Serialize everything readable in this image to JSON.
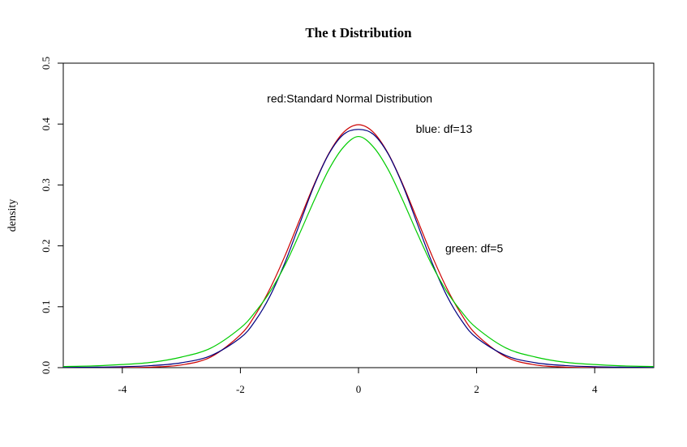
{
  "chart_data": {
    "type": "line",
    "title": "The t Distribution",
    "xlabel": "",
    "ylabel": "density",
    "xlim": [
      -5,
      5
    ],
    "ylim": [
      0,
      0.5
    ],
    "x_ticks": [
      "-4",
      "-2",
      "0",
      "2",
      "4"
    ],
    "y_ticks": [
      "0.0",
      "0.1",
      "0.2",
      "0.3",
      "0.4",
      "0.5"
    ],
    "x": [
      -5,
      -4.5,
      -4,
      -3.5,
      -3,
      -2.5,
      -2,
      -1.75,
      -1.5,
      -1.25,
      -1,
      -0.75,
      -0.5,
      -0.25,
      0,
      0.25,
      0.5,
      0.75,
      1,
      1.25,
      1.5,
      1.75,
      2,
      2.5,
      3,
      3.5,
      4,
      4.5,
      5
    ],
    "series": [
      {
        "name": "",
        "color": "#cc0000",
        "values": [
          0.0,
          0.0,
          0.0001,
          0.0009,
          0.0044,
          0.0175,
          0.054,
          0.0863,
          0.1295,
          0.1826,
          0.242,
          0.3011,
          0.3521,
          0.3867,
          0.3989,
          0.3867,
          0.3521,
          0.3011,
          0.242,
          0.1826,
          0.1295,
          0.0863,
          0.054,
          0.0175,
          0.0044,
          0.0009,
          0.0001,
          0.0,
          0.0
        ]
      },
      {
        "name": "",
        "color": "#000080",
        "values": [
          0.0003,
          0.0007,
          0.0015,
          0.0034,
          0.008,
          0.0197,
          0.049,
          0.0768,
          0.1173,
          0.1714,
          0.2353,
          0.2994,
          0.3513,
          0.3833,
          0.3912,
          0.3833,
          0.3513,
          0.2994,
          0.2353,
          0.1714,
          0.1173,
          0.0768,
          0.049,
          0.0197,
          0.008,
          0.0034,
          0.0015,
          0.0007,
          0.0003
        ]
      },
      {
        "name": "",
        "color": "#00cc00",
        "values": [
          0.0018,
          0.0028,
          0.0051,
          0.0088,
          0.0173,
          0.0322,
          0.0651,
          0.0912,
          0.1245,
          0.1674,
          0.2197,
          0.2747,
          0.3257,
          0.3626,
          0.3796,
          0.3626,
          0.3257,
          0.2747,
          0.2197,
          0.1674,
          0.1245,
          0.0912,
          0.0651,
          0.0322,
          0.0173,
          0.0088,
          0.0051,
          0.0028,
          0.0018
        ]
      }
    ],
    "annotations": [
      {
        "text": "red:Standard Normal Distribution",
        "x": -1.55,
        "y": 0.442
      },
      {
        "text": "blue: df=13",
        "x": 0.97,
        "y": 0.392
      },
      {
        "text": "green: df=5",
        "x": 1.47,
        "y": 0.196
      }
    ],
    "grid": false,
    "legend": "none"
  }
}
